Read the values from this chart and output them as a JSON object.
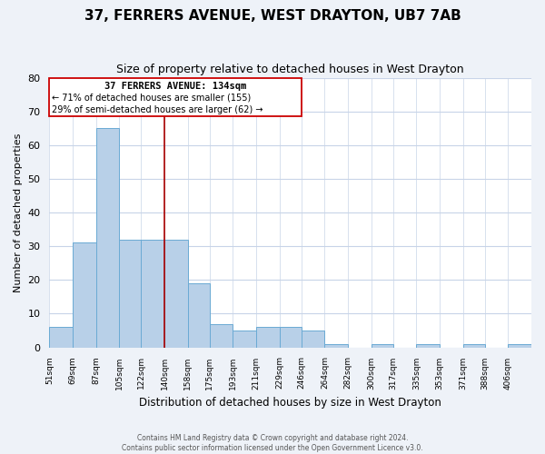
{
  "title": "37, FERRERS AVENUE, WEST DRAYTON, UB7 7AB",
  "subtitle": "Size of property relative to detached houses in West Drayton",
  "xlabel": "Distribution of detached houses by size in West Drayton",
  "ylabel": "Number of detached properties",
  "bar_labels": [
    "51sqm",
    "69sqm",
    "87sqm",
    "105sqm",
    "122sqm",
    "140sqm",
    "158sqm",
    "175sqm",
    "193sqm",
    "211sqm",
    "229sqm",
    "246sqm",
    "264sqm",
    "282sqm",
    "300sqm",
    "317sqm",
    "335sqm",
    "353sqm",
    "371sqm",
    "388sqm",
    "406sqm"
  ],
  "bar_values": [
    6,
    31,
    65,
    32,
    32,
    32,
    19,
    7,
    5,
    6,
    6,
    5,
    1,
    0,
    1,
    0,
    1,
    0,
    1,
    0,
    1
  ],
  "bar_color": "#b8d0e8",
  "bar_edge_color": "#6aaad4",
  "property_line_color": "#aa0000",
  "ylim": [
    0,
    80
  ],
  "yticks": [
    0,
    10,
    20,
    30,
    40,
    50,
    60,
    70,
    80
  ],
  "annotation_title": "37 FERRERS AVENUE: 134sqm",
  "annotation_line1": "← 71% of detached houses are smaller (155)",
  "annotation_line2": "29% of semi-detached houses are larger (62) →",
  "footer_line1": "Contains HM Land Registry data © Crown copyright and database right 2024.",
  "footer_line2": "Contains public sector information licensed under the Open Government Licence v3.0.",
  "bin_edges": [
    51,
    69,
    87,
    105,
    122,
    140,
    158,
    175,
    193,
    211,
    229,
    246,
    264,
    282,
    300,
    317,
    335,
    353,
    371,
    388,
    406
  ],
  "background_color": "#eef2f8",
  "plot_bg_color": "#ffffff",
  "grid_color": "#c8d4e8"
}
